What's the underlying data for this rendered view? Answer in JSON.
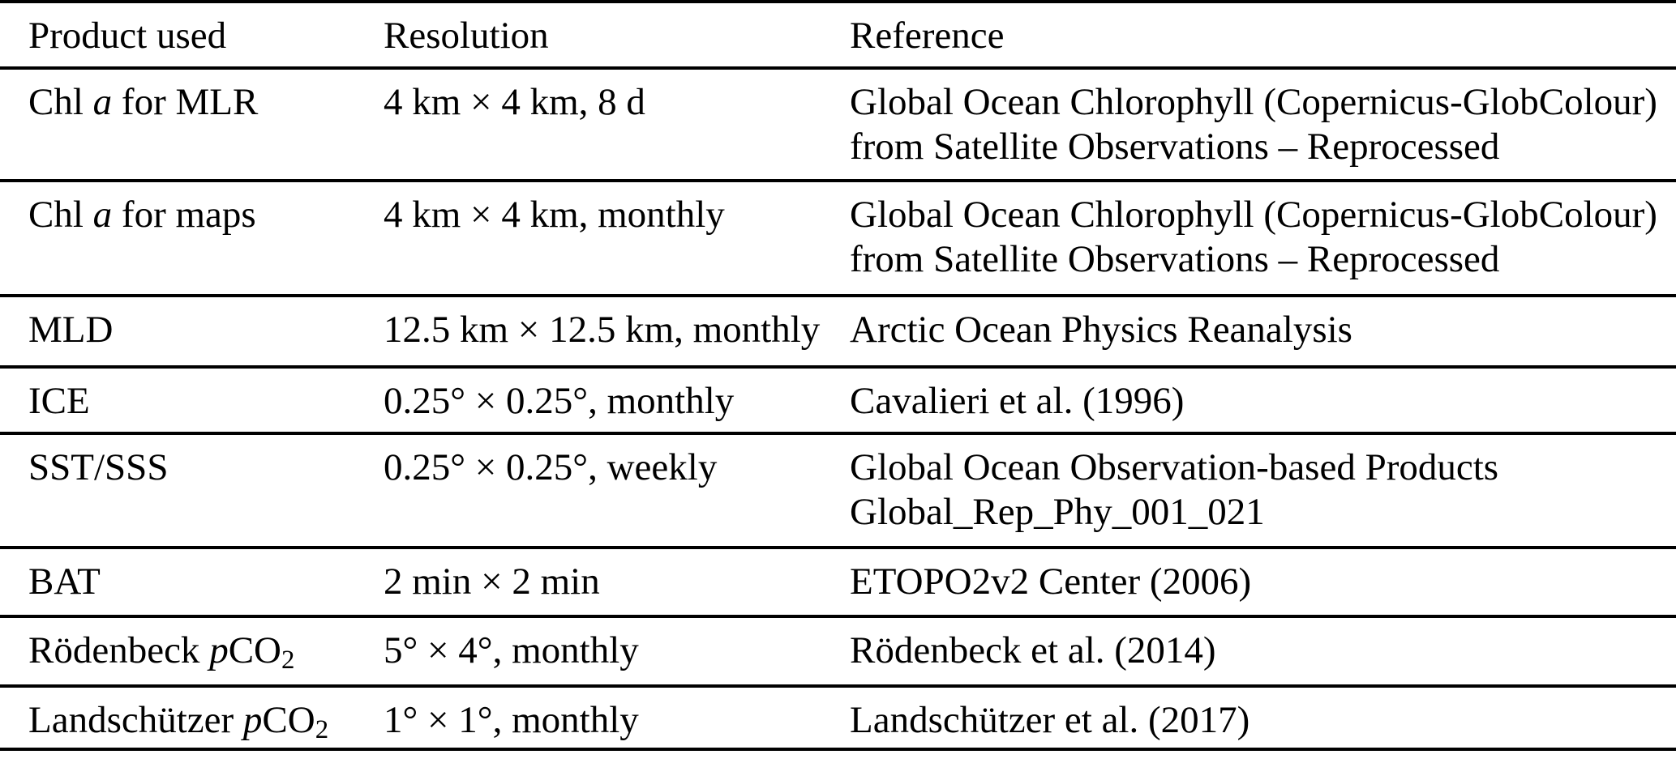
{
  "table": {
    "headers": {
      "product": "Product used",
      "resolution": "Resolution",
      "reference": "Reference"
    },
    "rows": [
      {
        "product": {
          "pre": "Chl ",
          "em": "a",
          "post": " for MLR",
          "sub": ""
        },
        "resolution": "4 km × 4 km, 8 d",
        "reference_line1": "Global Ocean Chlorophyll (Copernicus-GlobColour)",
        "reference_line2": "from Satellite Observations – Reprocessed"
      },
      {
        "product": {
          "pre": "Chl ",
          "em": "a",
          "post": " for maps",
          "sub": ""
        },
        "resolution": "4 km × 4 km, monthly",
        "reference_line1": "Global Ocean Chlorophyll (Copernicus-GlobColour)",
        "reference_line2": "from Satellite Observations – Reprocessed"
      },
      {
        "product": {
          "pre": "MLD",
          "em": "",
          "post": "",
          "sub": ""
        },
        "resolution": "12.5 km × 12.5 km, monthly",
        "reference_line1": "Arctic Ocean Physics Reanalysis",
        "reference_line2": ""
      },
      {
        "product": {
          "pre": "ICE",
          "em": "",
          "post": "",
          "sub": ""
        },
        "resolution": "0.25° × 0.25°, monthly",
        "reference_line1": "Cavalieri et al. (1996)",
        "reference_line2": ""
      },
      {
        "product": {
          "pre": "SST/SSS",
          "em": "",
          "post": "",
          "sub": ""
        },
        "resolution": "0.25° × 0.25°, weekly",
        "reference_line1": "Global Ocean Observation-based Products",
        "reference_line2": "Global_Rep_Phy_001_021"
      },
      {
        "product": {
          "pre": "BAT",
          "em": "",
          "post": "",
          "sub": ""
        },
        "resolution": "2 min × 2 min",
        "reference_line1": "ETOPO2v2 Center (2006)",
        "reference_line2": ""
      },
      {
        "product": {
          "pre": "Rödenbeck ",
          "em": "p",
          "post": "CO",
          "sub": "2"
        },
        "resolution": "5° × 4°, monthly",
        "reference_line1": "Rödenbeck et al. (2014)",
        "reference_line2": ""
      },
      {
        "product": {
          "pre": "Landschützer ",
          "em": "p",
          "post": "CO",
          "sub": "2"
        },
        "resolution": "1° × 1°, monthly",
        "reference_line1": "Landschützer et al. (2017)",
        "reference_line2": ""
      }
    ]
  }
}
